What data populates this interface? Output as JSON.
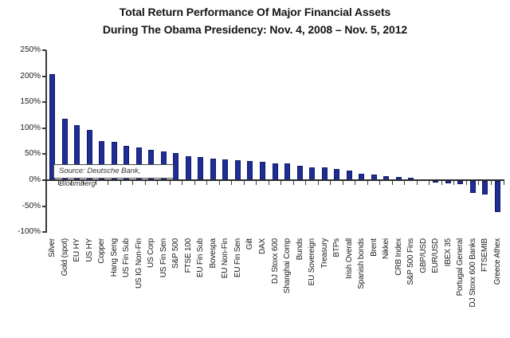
{
  "title": {
    "line1": "Total Return Performance Of Major Financial Assets",
    "line2": "During The Obama Presidency: Nov. 4, 2008 – Nov. 5, 2012"
  },
  "source_note": "Source: Deutsche Bank, Bloomberg",
  "colors": {
    "bar_fill": "#1f2d96",
    "bar_border": "#111a63",
    "axis": "#3a3a3a",
    "text": "#1a1a1a"
  },
  "chart_data": {
    "type": "bar",
    "title": "Total Return Performance Of Major Financial Assets During The Obama Presidency: Nov. 4, 2008 – Nov. 5, 2012",
    "source": "Source: Deutsche Bank, Bloomberg",
    "categories": [
      "Silver",
      "Gold (spot)",
      "EU HY",
      "US HY",
      "Copper",
      "Hang Seng",
      "US Fin Sub",
      "US IG Non-Fin",
      "US Corp",
      "US Fin Sen",
      "S&P 500",
      "FTSE 100",
      "EU Fin Sub",
      "Bovespa",
      "EU Non-Fin",
      "EU Fin Sen",
      "Gilt",
      "DAX",
      "DJ Stoxx 600",
      "Shanghai Comp",
      "Bunds",
      "EU Sovereign",
      "Treasury",
      "BTPs",
      "Irish Overall",
      "Spanish bonds",
      "Brent",
      "Nikkei",
      "CRB Index",
      "S&P 500 Fins",
      "GBP/USD",
      "EUR/USD",
      "IBEX 35",
      "Portugal General",
      "DJ Stoxx 600 Banks",
      "FTSEMIB",
      "Greece Athex"
    ],
    "values": [
      204,
      118,
      106,
      97,
      75,
      74,
      66,
      63,
      58,
      55,
      52,
      46,
      44,
      41,
      40,
      38,
      37,
      36,
      33,
      32,
      27,
      25,
      24,
      22,
      18,
      13,
      10,
      7,
      6,
      5,
      1.5,
      -3,
      -4,
      -6,
      -23,
      -26,
      -60
    ],
    "unit": "%",
    "xlabel": "",
    "ylabel": "",
    "ylim": [
      -100,
      250
    ],
    "y_ticks": [
      250,
      200,
      150,
      100,
      50,
      0,
      -50,
      -100
    ],
    "y_tick_labels": [
      "250%",
      "200%",
      "150%",
      "100%",
      "50%",
      "0%",
      "-50%",
      "-100%"
    ],
    "grid": false,
    "legend": false
  }
}
